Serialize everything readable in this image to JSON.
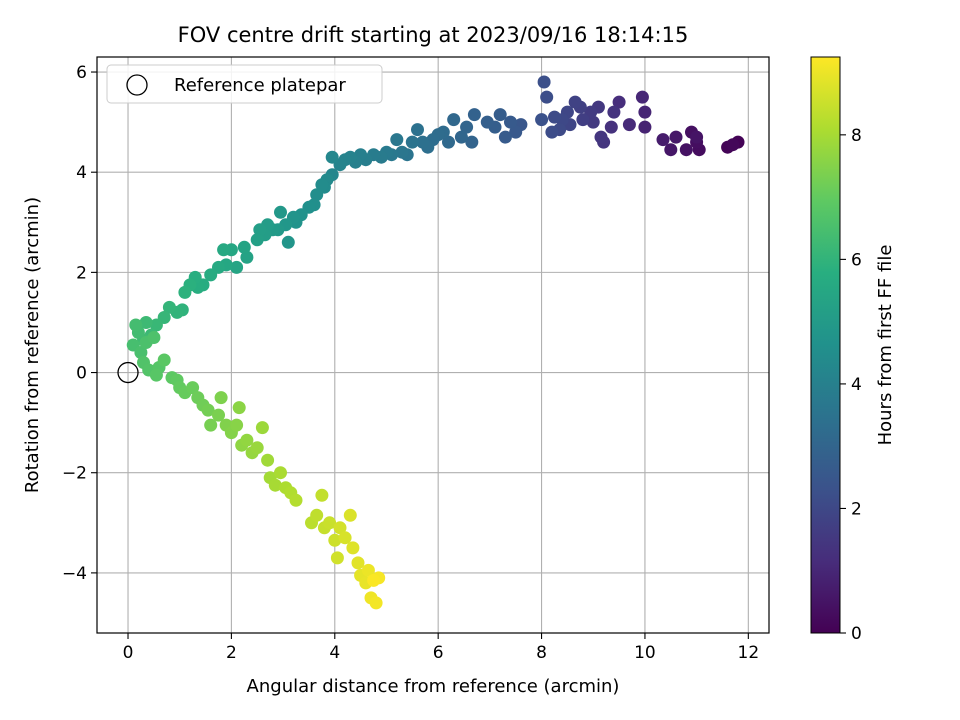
{
  "chart_data": {
    "type": "scatter",
    "title": "FOV centre drift starting at 2023/09/16 18:14:15",
    "xlabel": "Angular distance from reference (arcmin)",
    "ylabel": "Rotation from reference (arcmin)",
    "xlim": [
      -0.6,
      12.4
    ],
    "ylim": [
      -5.2,
      6.3
    ],
    "xticks": [
      0,
      2,
      4,
      6,
      8,
      10,
      12
    ],
    "yticks": [
      -4,
      -2,
      0,
      2,
      4,
      6
    ],
    "grid": true,
    "legend": {
      "placement": "upper-left",
      "entries": [
        "Reference platepar"
      ]
    },
    "reference_point": {
      "x": 0,
      "y": 0
    },
    "colorbar": {
      "label": "Hours from first FF file",
      "range": [
        0,
        9.25
      ],
      "ticks": [
        0,
        2,
        4,
        6,
        8
      ],
      "colormap": "viridis"
    },
    "points": [
      [
        11.8,
        4.6,
        0.05
      ],
      [
        11.6,
        4.5,
        0.1
      ],
      [
        11.7,
        4.55,
        0.15
      ],
      [
        11.05,
        4.45,
        0.3
      ],
      [
        11.0,
        4.6,
        0.35
      ],
      [
        10.9,
        4.8,
        0.4
      ],
      [
        10.8,
        4.45,
        0.45
      ],
      [
        11.0,
        4.7,
        0.5
      ],
      [
        10.5,
        4.45,
        0.55
      ],
      [
        10.6,
        4.7,
        0.6
      ],
      [
        10.35,
        4.65,
        0.7
      ],
      [
        10.0,
        4.9,
        0.9
      ],
      [
        10.0,
        5.2,
        0.95
      ],
      [
        9.95,
        5.5,
        1.0
      ],
      [
        9.7,
        4.95,
        1.1
      ],
      [
        9.5,
        5.4,
        1.2
      ],
      [
        9.35,
        4.9,
        1.3
      ],
      [
        9.4,
        5.2,
        1.35
      ],
      [
        9.2,
        4.6,
        1.4
      ],
      [
        9.15,
        4.7,
        1.45
      ],
      [
        9.1,
        5.3,
        1.5
      ],
      [
        9.0,
        5.0,
        1.55
      ],
      [
        8.95,
        5.2,
        1.6
      ],
      [
        8.8,
        5.05,
        1.7
      ],
      [
        8.75,
        5.3,
        1.75
      ],
      [
        8.65,
        5.4,
        1.8
      ],
      [
        8.55,
        4.95,
        1.9
      ],
      [
        8.5,
        5.2,
        1.95
      ],
      [
        8.4,
        5.05,
        2.0
      ],
      [
        8.35,
        4.85,
        2.05
      ],
      [
        8.25,
        5.1,
        2.1
      ],
      [
        8.2,
        4.8,
        2.15
      ],
      [
        8.1,
        5.5,
        2.2
      ],
      [
        8.05,
        5.8,
        2.25
      ],
      [
        8.0,
        5.05,
        2.3
      ],
      [
        7.6,
        4.95,
        2.5
      ],
      [
        7.5,
        4.8,
        2.55
      ],
      [
        7.4,
        5.0,
        2.6
      ],
      [
        7.3,
        4.7,
        2.65
      ],
      [
        7.2,
        5.15,
        2.7
      ],
      [
        7.1,
        4.9,
        2.75
      ],
      [
        6.95,
        5.0,
        2.8
      ],
      [
        6.7,
        5.15,
        2.9
      ],
      [
        6.65,
        4.6,
        2.95
      ],
      [
        6.55,
        4.9,
        3.0
      ],
      [
        6.45,
        4.7,
        3.05
      ],
      [
        6.3,
        5.05,
        3.1
      ],
      [
        6.2,
        4.6,
        3.15
      ],
      [
        6.1,
        4.8,
        3.2
      ],
      [
        6.0,
        4.75,
        3.25
      ],
      [
        5.9,
        4.65,
        3.3
      ],
      [
        5.8,
        4.5,
        3.35
      ],
      [
        5.7,
        4.6,
        3.4
      ],
      [
        5.6,
        4.85,
        3.45
      ],
      [
        5.5,
        4.6,
        3.5
      ],
      [
        5.4,
        4.35,
        3.55
      ],
      [
        5.3,
        4.4,
        3.6
      ],
      [
        5.2,
        4.65,
        3.65
      ],
      [
        5.1,
        4.35,
        3.7
      ],
      [
        5.0,
        4.4,
        3.75
      ],
      [
        4.9,
        4.3,
        3.8
      ],
      [
        4.75,
        4.35,
        3.85
      ],
      [
        4.6,
        4.25,
        3.9
      ],
      [
        4.5,
        4.35,
        3.95
      ],
      [
        4.4,
        4.2,
        4.0
      ],
      [
        4.3,
        4.3,
        4.05
      ],
      [
        4.2,
        4.25,
        4.1
      ],
      [
        4.1,
        4.15,
        4.15
      ],
      [
        3.95,
        3.95,
        4.2
      ],
      [
        3.95,
        4.3,
        4.25
      ],
      [
        3.85,
        3.85,
        4.35
      ],
      [
        3.8,
        3.7,
        4.4
      ],
      [
        3.75,
        3.75,
        4.45
      ],
      [
        3.65,
        3.55,
        4.5
      ],
      [
        3.6,
        3.35,
        4.55
      ],
      [
        3.5,
        3.3,
        4.6
      ],
      [
        3.35,
        3.15,
        4.65
      ],
      [
        3.25,
        3.0,
        4.7
      ],
      [
        3.2,
        3.1,
        4.75
      ],
      [
        3.1,
        2.6,
        4.8
      ],
      [
        3.05,
        2.95,
        4.85
      ],
      [
        2.95,
        3.2,
        4.9
      ],
      [
        2.9,
        2.85,
        4.95
      ],
      [
        2.8,
        2.85,
        5.0
      ],
      [
        2.7,
        2.95,
        5.05
      ],
      [
        2.65,
        2.75,
        5.1
      ],
      [
        2.55,
        2.85,
        5.15
      ],
      [
        2.5,
        2.65,
        5.2
      ],
      [
        2.3,
        2.3,
        5.3
      ],
      [
        2.25,
        2.5,
        5.35
      ],
      [
        2.1,
        2.1,
        5.4
      ],
      [
        2.0,
        2.45,
        5.45
      ],
      [
        1.9,
        2.15,
        5.5
      ],
      [
        1.85,
        2.45,
        5.55
      ],
      [
        1.75,
        2.1,
        5.6
      ],
      [
        1.6,
        1.95,
        5.65
      ],
      [
        1.45,
        1.75,
        5.7
      ],
      [
        1.35,
        1.7,
        5.75
      ],
      [
        1.3,
        1.9,
        5.8
      ],
      [
        1.2,
        1.75,
        5.85
      ],
      [
        1.1,
        1.6,
        5.9
      ],
      [
        1.05,
        1.25,
        5.95
      ],
      [
        0.95,
        1.2,
        6.0
      ],
      [
        0.8,
        1.3,
        6.05
      ],
      [
        0.7,
        1.1,
        6.1
      ],
      [
        0.55,
        0.95,
        6.15
      ],
      [
        0.45,
        0.75,
        6.2
      ],
      [
        0.35,
        1.0,
        6.25
      ],
      [
        0.3,
        0.65,
        6.3
      ],
      [
        0.2,
        0.8,
        6.35
      ],
      [
        0.15,
        0.95,
        6.4
      ],
      [
        0.1,
        0.55,
        6.45
      ],
      [
        0.25,
        0.4,
        6.5
      ],
      [
        0.35,
        0.6,
        6.55
      ],
      [
        0.5,
        0.7,
        6.6
      ],
      [
        0.3,
        0.2,
        6.65
      ],
      [
        0.4,
        0.05,
        6.7
      ],
      [
        0.6,
        0.1,
        6.75
      ],
      [
        0.55,
        -0.05,
        6.8
      ],
      [
        0.7,
        0.25,
        6.85
      ],
      [
        0.85,
        -0.1,
        6.9
      ],
      [
        0.95,
        -0.15,
        6.95
      ],
      [
        1.0,
        -0.3,
        7.0
      ],
      [
        1.1,
        -0.4,
        7.05
      ],
      [
        1.25,
        -0.3,
        7.1
      ],
      [
        1.35,
        -0.5,
        7.15
      ],
      [
        1.45,
        -0.65,
        7.2
      ],
      [
        1.55,
        -0.75,
        7.25
      ],
      [
        1.6,
        -1.05,
        7.3
      ],
      [
        1.75,
        -0.85,
        7.35
      ],
      [
        1.8,
        -0.5,
        7.4
      ],
      [
        1.9,
        -1.05,
        7.45
      ],
      [
        2.0,
        -1.2,
        7.5
      ],
      [
        2.1,
        -1.05,
        7.55
      ],
      [
        2.15,
        -0.7,
        7.6
      ],
      [
        2.2,
        -1.45,
        7.65
      ],
      [
        2.3,
        -1.35,
        7.7
      ],
      [
        2.4,
        -1.6,
        7.75
      ],
      [
        2.5,
        -1.5,
        7.8
      ],
      [
        2.6,
        -1.1,
        7.85
      ],
      [
        2.7,
        -1.75,
        7.9
      ],
      [
        2.75,
        -2.1,
        7.95
      ],
      [
        2.85,
        -2.25,
        8.0
      ],
      [
        2.95,
        -2.0,
        8.05
      ],
      [
        3.05,
        -2.3,
        8.1
      ],
      [
        3.15,
        -2.4,
        8.15
      ],
      [
        3.25,
        -2.55,
        8.2
      ],
      [
        3.55,
        -3.0,
        8.3
      ],
      [
        3.65,
        -2.85,
        8.35
      ],
      [
        3.75,
        -2.45,
        8.4
      ],
      [
        3.8,
        -3.1,
        8.45
      ],
      [
        3.9,
        -3.0,
        8.5
      ],
      [
        4.0,
        -3.35,
        8.55
      ],
      [
        4.05,
        -3.7,
        8.6
      ],
      [
        4.1,
        -3.1,
        8.65
      ],
      [
        4.2,
        -3.3,
        8.7
      ],
      [
        4.3,
        -2.85,
        8.75
      ],
      [
        4.35,
        -3.5,
        8.8
      ],
      [
        4.45,
        -3.8,
        8.85
      ],
      [
        4.5,
        -4.05,
        8.9
      ],
      [
        4.6,
        -4.2,
        8.95
      ],
      [
        4.65,
        -3.95,
        9.0
      ],
      [
        4.7,
        -4.5,
        9.05
      ],
      [
        4.8,
        -4.6,
        9.1
      ],
      [
        4.85,
        -4.1,
        9.15
      ],
      [
        4.75,
        -4.15,
        9.2
      ]
    ]
  }
}
